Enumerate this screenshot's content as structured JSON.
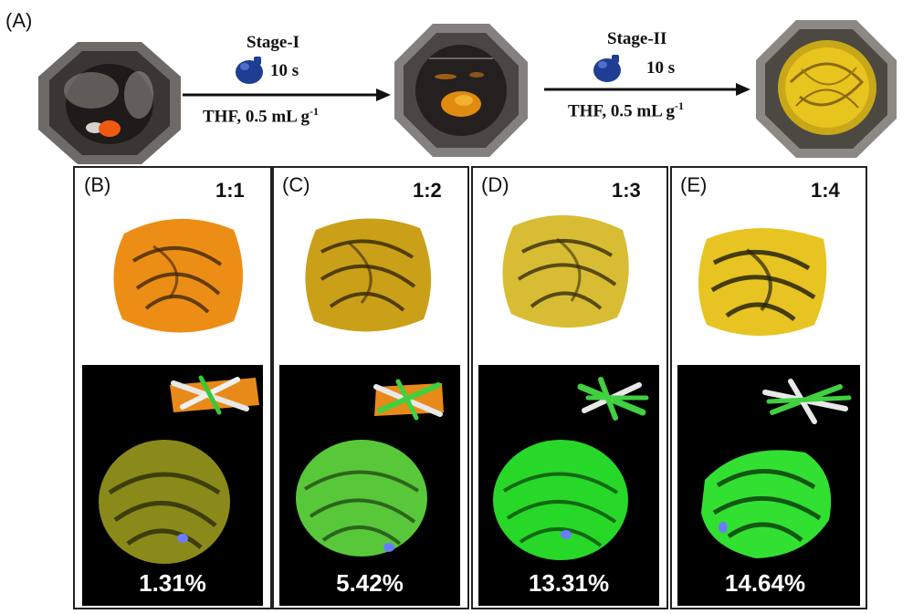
{
  "panel_a": {
    "label": "(A)",
    "stage1": {
      "title": "Stage-I",
      "time": "10 s",
      "condition": "THF, 0.5 mL g",
      "condition_sup": "-1"
    },
    "stage2": {
      "title": "Stage-II",
      "time": "10 s",
      "condition": "THF, 0.5 mL g",
      "condition_sup": "-1"
    }
  },
  "panels": [
    {
      "label": "(B)",
      "ratio": "1:1",
      "percent": "1.31%",
      "film_color": "#e8901a",
      "glow_color": "#b8b030"
    },
    {
      "label": "(C)",
      "ratio": "1:2",
      "percent": "5.42%",
      "film_color": "#d8a820",
      "glow_color": "#7ad83a"
    },
    {
      "label": "(D)",
      "ratio": "1:3",
      "percent": "13.31%",
      "film_color": "#e0c43a",
      "glow_color": "#3ee83a"
    },
    {
      "label": "(E)",
      "ratio": "1:4",
      "percent": "14.64%",
      "film_color": "#f0cc20",
      "glow_color": "#3cf03a"
    }
  ]
}
